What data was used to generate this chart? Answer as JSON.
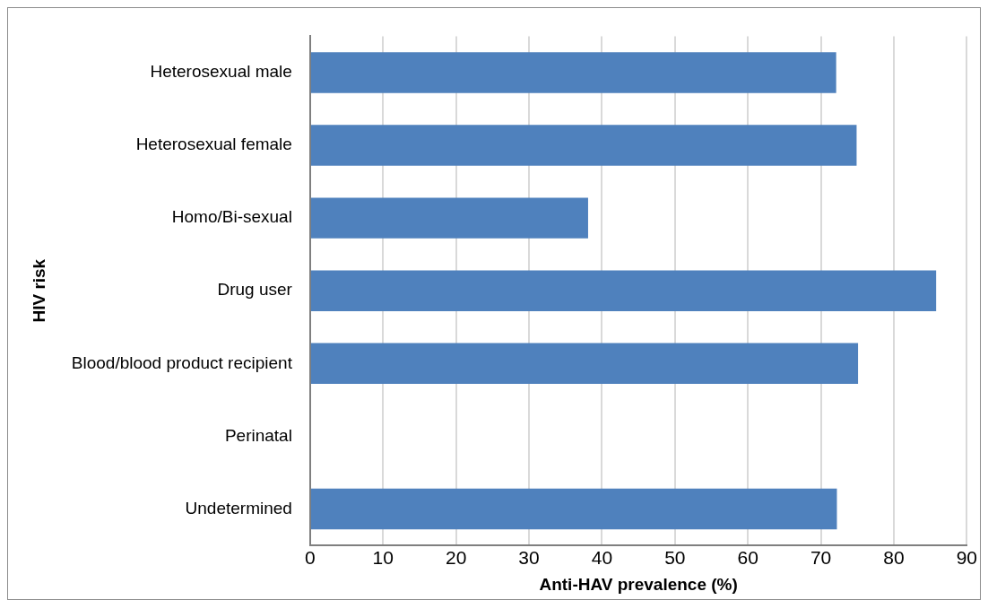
{
  "chart_data": {
    "type": "bar",
    "orientation": "horizontal",
    "xlabel": "Anti-HAV prevalence (%)",
    "ylabel": "HIV risk",
    "categories": [
      "Heterosexual male",
      "Heterosexual female",
      "Homo/Bi-sexual",
      "Drug user",
      "Blood/blood product recipient",
      "Perinatal",
      "Undetermined"
    ],
    "values": [
      72.1,
      74.9,
      38.1,
      85.8,
      75.1,
      0,
      72.2
    ],
    "color": "#4f81bd",
    "xlim": [
      0,
      90
    ],
    "xticks": [
      0,
      10,
      20,
      30,
      40,
      50,
      60,
      70,
      80,
      90
    ],
    "grid": "x",
    "legend": false
  }
}
